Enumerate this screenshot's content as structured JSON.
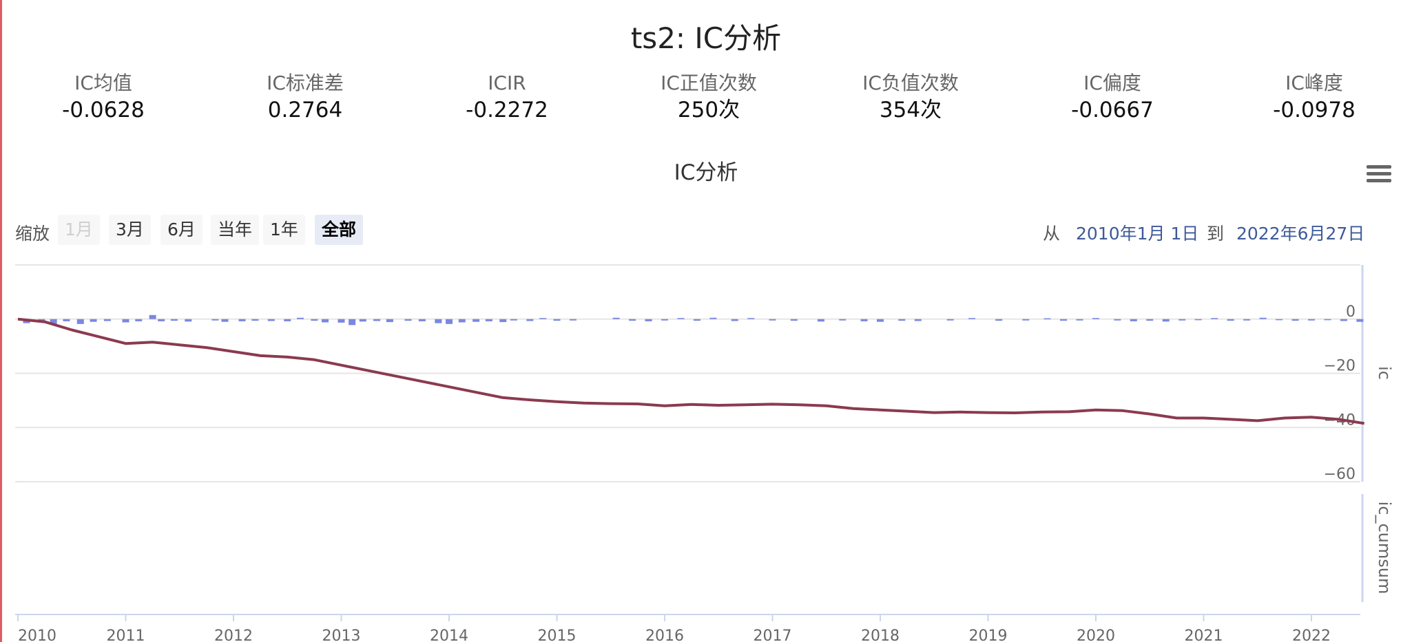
{
  "page_title": "ts2: IC分析",
  "stats": [
    {
      "label": "IC均值",
      "value": "-0.0628"
    },
    {
      "label": "IC标准差",
      "value": "0.2764"
    },
    {
      "label": "ICIR",
      "value": "-0.2272"
    },
    {
      "label": "IC正值次数",
      "value": "250次"
    },
    {
      "label": "IC负值次数",
      "value": "354次"
    },
    {
      "label": "IC偏度",
      "value": "-0.0667"
    },
    {
      "label": "IC峰度",
      "value": "-0.0978"
    }
  ],
  "range_selector": {
    "zoom_label": "缩放",
    "buttons": [
      "1月",
      "3月",
      "6月",
      "当年",
      "1年",
      "全部"
    ],
    "active": "全部",
    "disabled": "1月",
    "from_label": "从",
    "from_date": "2010年1月 1日",
    "to_label": "到",
    "to_date": "2022年6月27日"
  },
  "chart_data": {
    "type": "line",
    "title": "IC分析",
    "x_axis": {
      "ticks": [
        "2010",
        "2011",
        "2012",
        "2013",
        "2014",
        "2015",
        "2016",
        "2017",
        "2018",
        "2019",
        "2020",
        "2021",
        "2022"
      ],
      "range": [
        "2010-01-01",
        "2022-06-27"
      ]
    },
    "y_axes": [
      {
        "title": "ic",
        "ticks": [
          0,
          -20,
          -40,
          -60
        ],
        "range": [
          -60,
          20
        ]
      },
      {
        "title": "ic_cumsum",
        "ticks": []
      }
    ],
    "grid": true,
    "colors": {
      "ic_bars": "#7b87e0",
      "ic_cumsum_line": "#8b3a4f"
    },
    "series": [
      {
        "name": "ic_cumsum",
        "kind": "line",
        "x": [
          2010.0,
          2010.25,
          2010.5,
          2010.75,
          2011.0,
          2011.25,
          2011.5,
          2011.75,
          2012.0,
          2012.25,
          2012.5,
          2012.75,
          2013.0,
          2013.25,
          2013.5,
          2013.75,
          2014.0,
          2014.25,
          2014.5,
          2014.75,
          2015.0,
          2015.25,
          2015.5,
          2015.75,
          2016.0,
          2016.25,
          2016.5,
          2016.75,
          2017.0,
          2017.25,
          2017.5,
          2017.75,
          2018.0,
          2018.25,
          2018.5,
          2018.75,
          2019.0,
          2019.25,
          2019.5,
          2019.75,
          2020.0,
          2020.25,
          2020.5,
          2020.75,
          2021.0,
          2021.25,
          2021.5,
          2021.75,
          2022.0,
          2022.25,
          2022.49
        ],
        "y": [
          0,
          -1,
          -4,
          -6.5,
          -9,
          -8.5,
          -9.5,
          -10.5,
          -12,
          -13.5,
          -14,
          -15,
          -17,
          -19,
          -21,
          -23,
          -25,
          -27,
          -29,
          -29.8,
          -30.5,
          -31,
          -31.2,
          -31.3,
          -32,
          -31.5,
          -31.8,
          -31.6,
          -31.4,
          -31.6,
          -32,
          -33,
          -33.5,
          -34,
          -34.5,
          -34.3,
          -34.5,
          -34.6,
          -34.3,
          -34.2,
          -33.5,
          -33.8,
          -35,
          -36.5,
          -36.5,
          -37,
          -37.5,
          -36.5,
          -36.2,
          -37,
          -38.5
        ]
      },
      {
        "name": "ic",
        "kind": "column",
        "x": [
          2010.08,
          2010.22,
          2010.33,
          2010.45,
          2010.58,
          2010.7,
          2010.83,
          2011.0,
          2011.12,
          2011.25,
          2011.33,
          2011.45,
          2011.58,
          2011.83,
          2011.92,
          2012.08,
          2012.2,
          2012.35,
          2012.5,
          2012.62,
          2012.75,
          2012.85,
          2013.0,
          2013.1,
          2013.2,
          2013.33,
          2013.45,
          2013.62,
          2013.75,
          2013.9,
          2014.0,
          2014.12,
          2014.25,
          2014.37,
          2014.5,
          2014.6,
          2014.75,
          2014.87,
          2015.0,
          2015.15,
          2015.55,
          2015.7,
          2015.85,
          2016.0,
          2016.15,
          2016.3,
          2016.45,
          2016.65,
          2016.8,
          2017.0,
          2017.2,
          2017.45,
          2017.65,
          2017.85,
          2018.0,
          2018.2,
          2018.35,
          2018.65,
          2018.85,
          2019.1,
          2019.35,
          2019.55,
          2019.7,
          2019.85,
          2020.0,
          2020.2,
          2020.35,
          2020.5,
          2020.65,
          2020.8,
          2020.95,
          2021.1,
          2021.25,
          2021.4,
          2021.55,
          2021.7,
          2021.85,
          2022.0,
          2022.15,
          2022.3,
          2022.45
        ],
        "y": [
          -1.5,
          -1,
          -2,
          -0.8,
          -1.8,
          -1,
          -0.7,
          -1.2,
          -0.8,
          1.5,
          -0.8,
          -0.6,
          -0.9,
          -0.5,
          -1,
          -0.8,
          -0.6,
          -0.7,
          -0.8,
          0.5,
          -0.6,
          -1.2,
          -1.3,
          -2.2,
          -0.9,
          -0.7,
          -1.1,
          -0.6,
          -0.8,
          -1.5,
          -1.8,
          -1.2,
          -1,
          -0.8,
          -1.1,
          -0.5,
          -0.7,
          0.4,
          -0.6,
          -0.5,
          0.5,
          -0.6,
          -0.8,
          -0.5,
          0.4,
          -0.6,
          0.5,
          -0.7,
          0.4,
          -0.5,
          -0.6,
          -0.9,
          -0.5,
          -0.8,
          -1,
          -0.6,
          -0.7,
          -0.5,
          0.4,
          -0.6,
          -0.5,
          0.3,
          -0.6,
          -0.5,
          0.4,
          -0.5,
          -0.8,
          -0.6,
          -0.9,
          -0.5,
          -0.4,
          0.4,
          -0.6,
          -0.5,
          0.5,
          -0.4,
          -0.6,
          -0.5,
          -0.4,
          -0.7,
          -1.0
        ]
      }
    ]
  }
}
